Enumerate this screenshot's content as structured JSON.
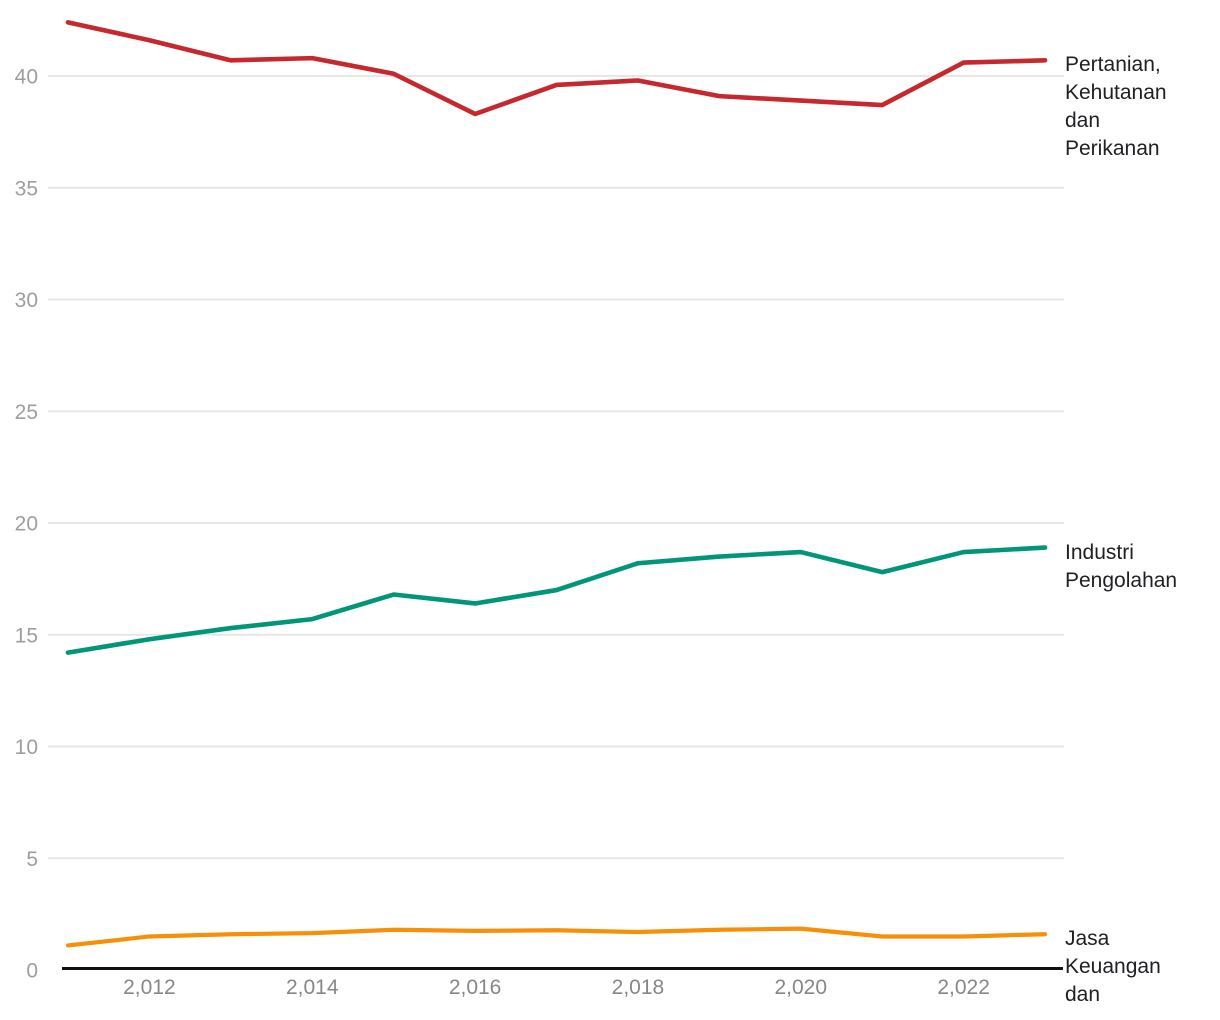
{
  "chart_data": {
    "type": "line",
    "title": "",
    "xlabel": "",
    "ylabel": "",
    "x": [
      2011,
      2012,
      2013,
      2014,
      2015,
      2016,
      2017,
      2018,
      2019,
      2020,
      2021,
      2022,
      2023
    ],
    "x_tick_years": [
      2012,
      2014,
      2016,
      2018,
      2020,
      2022
    ],
    "x_tick_labels": [
      "2,012",
      "2,014",
      "2,016",
      "2,018",
      "2,020",
      "2,022"
    ],
    "y_ticks": [
      0,
      5,
      10,
      15,
      20,
      25,
      30,
      35,
      40
    ],
    "ylim": [
      0,
      43
    ],
    "grid": "horizontal-only",
    "legend_position": "right-of-line-ends",
    "series": [
      {
        "name": "Pertanian, Kehutanan dan Perikanan",
        "label_lines": [
          "Pertanian,",
          "Kehutanan",
          "dan",
          "Perikanan"
        ],
        "color": "#c5282d",
        "values": [
          42.4,
          41.6,
          40.7,
          40.8,
          40.1,
          38.3,
          39.6,
          39.8,
          39.1,
          38.9,
          38.7,
          40.6,
          40.7
        ]
      },
      {
        "name": "Industri Pengolahan",
        "label_lines": [
          "Industri",
          "Pengolahan"
        ],
        "color": "#019678",
        "values": [
          14.2,
          14.8,
          15.3,
          15.7,
          16.8,
          16.4,
          17.0,
          18.2,
          18.5,
          18.7,
          17.8,
          18.7,
          18.9
        ]
      },
      {
        "name": "Jasa Keuangan dan",
        "label_lines": [
          "Jasa",
          "Keuangan",
          "dan"
        ],
        "color": "#f79009",
        "values": [
          1.1,
          1.5,
          1.6,
          1.65,
          1.8,
          1.75,
          1.78,
          1.7,
          1.8,
          1.85,
          1.5,
          1.5,
          1.6
        ]
      }
    ],
    "colors": {
      "grid": "#e7e7e7",
      "axis": "#111111",
      "y_tick_text": "#9e9e9e",
      "x_tick_text": "#878787",
      "label_text": "#202124"
    }
  }
}
